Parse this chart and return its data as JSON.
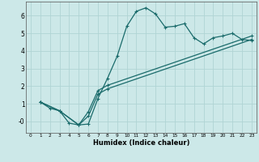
{
  "xlabel": "Humidex (Indice chaleur)",
  "bg_color": "#cce8e8",
  "grid_color": "#b0d4d4",
  "line_color": "#1a6b6b",
  "xlim": [
    -0.5,
    23.5
  ],
  "ylim": [
    -0.65,
    6.8
  ],
  "xticks": [
    0,
    1,
    2,
    3,
    4,
    5,
    6,
    7,
    8,
    9,
    10,
    11,
    12,
    13,
    14,
    15,
    16,
    17,
    18,
    19,
    20,
    21,
    22,
    23
  ],
  "yticks": [
    0,
    1,
    2,
    3,
    4,
    5,
    6
  ],
  "ytick_labels": [
    "-0",
    "1",
    "2",
    "3",
    "4",
    "5",
    "6"
  ],
  "series": [
    {
      "x": [
        1,
        2,
        3,
        4,
        5,
        6,
        7,
        8,
        9,
        10,
        11,
        12,
        13,
        14,
        15,
        16,
        17,
        18,
        19,
        20,
        21,
        22,
        23
      ],
      "y": [
        1.1,
        0.75,
        0.6,
        -0.1,
        -0.2,
        -0.15,
        1.3,
        2.45,
        3.7,
        5.4,
        6.25,
        6.45,
        6.1,
        5.35,
        5.4,
        5.55,
        4.75,
        4.4,
        4.75,
        4.85,
        5.0,
        4.65,
        4.6
      ]
    },
    {
      "x": [
        1,
        3,
        5,
        6,
        7,
        8,
        23
      ],
      "y": [
        1.1,
        0.6,
        -0.2,
        0.3,
        1.55,
        1.85,
        4.65
      ]
    },
    {
      "x": [
        1,
        3,
        5,
        6,
        7,
        8,
        23
      ],
      "y": [
        1.1,
        0.6,
        -0.2,
        0.55,
        1.75,
        2.05,
        4.85
      ]
    }
  ]
}
